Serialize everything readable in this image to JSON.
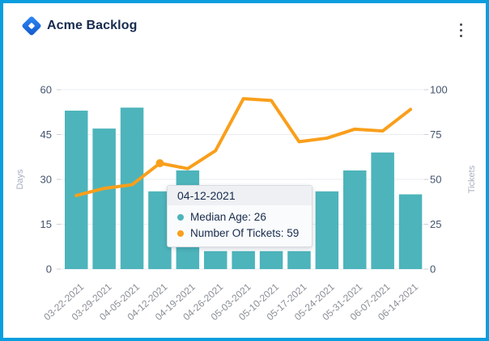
{
  "header": {
    "title": "Acme Backlog"
  },
  "menu": {
    "icon": "kebab-vertical"
  },
  "colors": {
    "frame": "#0a9ede",
    "bar": "#4db4bb",
    "line": "#f99f1b",
    "grid": "#ebedf0",
    "tick_mark": "#c9ced6",
    "tick_text": "#44546f",
    "axis_title_text": "#a6aebc",
    "x_label_text": "#8a8f96",
    "tooltip_text": "#172b4d"
  },
  "chart_data": {
    "type": "combo-bar-line",
    "title": "",
    "categories": [
      "03-22-2021",
      "03-29-2021",
      "04-05-2021",
      "04-12-2021",
      "04-19-2021",
      "04-26-2021",
      "05-03-2021",
      "05-10-2021",
      "05-17-2021",
      "05-24-2021",
      "05-31-2021",
      "06-07-2021",
      "06-14-2021"
    ],
    "series": [
      {
        "name": "Median Age",
        "type": "bar",
        "axis": "left",
        "color": "#4db4bb",
        "values": [
          53,
          47,
          54,
          26,
          33,
          6,
          6,
          6,
          6,
          26,
          33,
          39,
          25
        ]
      },
      {
        "name": "Number Of Tickets",
        "type": "line",
        "axis": "right",
        "color": "#f99f1b",
        "values": [
          41,
          45,
          47,
          59,
          56,
          66,
          95,
          94,
          71,
          73,
          78,
          77,
          89
        ]
      }
    ],
    "left_axis": {
      "title": "Days",
      "ticks": [
        0,
        15,
        30,
        45,
        60
      ],
      "min": 0,
      "max": 60
    },
    "right_axis": {
      "title": "Tickets",
      "ticks": [
        0,
        25,
        50,
        75,
        100
      ],
      "min": 0,
      "max": 100
    },
    "highlight_index": 3,
    "legend": "none",
    "grid": true
  },
  "tooltip": {
    "title": "04-12-2021",
    "items": [
      {
        "text": "Median Age: 26",
        "color": "#4db4bb"
      },
      {
        "text": "Number Of Tickets: 59",
        "color": "#f99f1b"
      }
    ]
  }
}
